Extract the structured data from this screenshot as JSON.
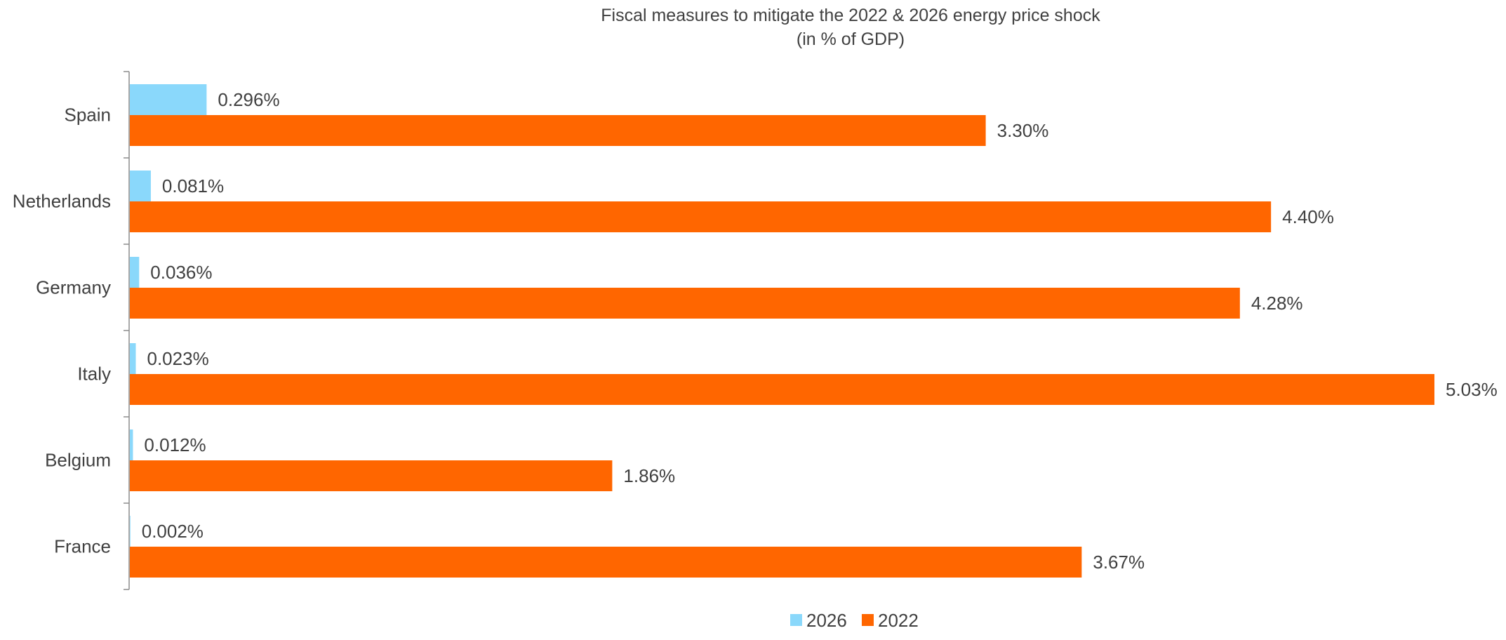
{
  "chart_data": {
    "type": "bar",
    "orientation": "horizontal",
    "title": "Fiscal measures to mitigate the 2022 & 2026 energy price shock",
    "subtitle": "(in % of GDP)",
    "xlabel": "",
    "ylabel": "",
    "grid": false,
    "legend_position": "bottom",
    "xlim": [
      0,
      5.03
    ],
    "categories": [
      "Spain",
      "Netherlands",
      "Germany",
      "Italy",
      "Belgium",
      "France"
    ],
    "series": [
      {
        "name": "2026",
        "color": "#8AD8FB",
        "values": [
          0.296,
          0.081,
          0.036,
          0.023,
          0.012,
          0.002
        ],
        "labels": [
          "0.296%",
          "0.081%",
          "0.036%",
          "0.023%",
          "0.012%",
          "0.002%"
        ]
      },
      {
        "name": "2022",
        "color": "#FF6600",
        "values": [
          3.3,
          4.4,
          4.28,
          5.03,
          1.86,
          3.67
        ],
        "labels": [
          "3.30%",
          "4.40%",
          "4.28%",
          "5.03%",
          "1.86%",
          "3.67%"
        ]
      }
    ]
  }
}
